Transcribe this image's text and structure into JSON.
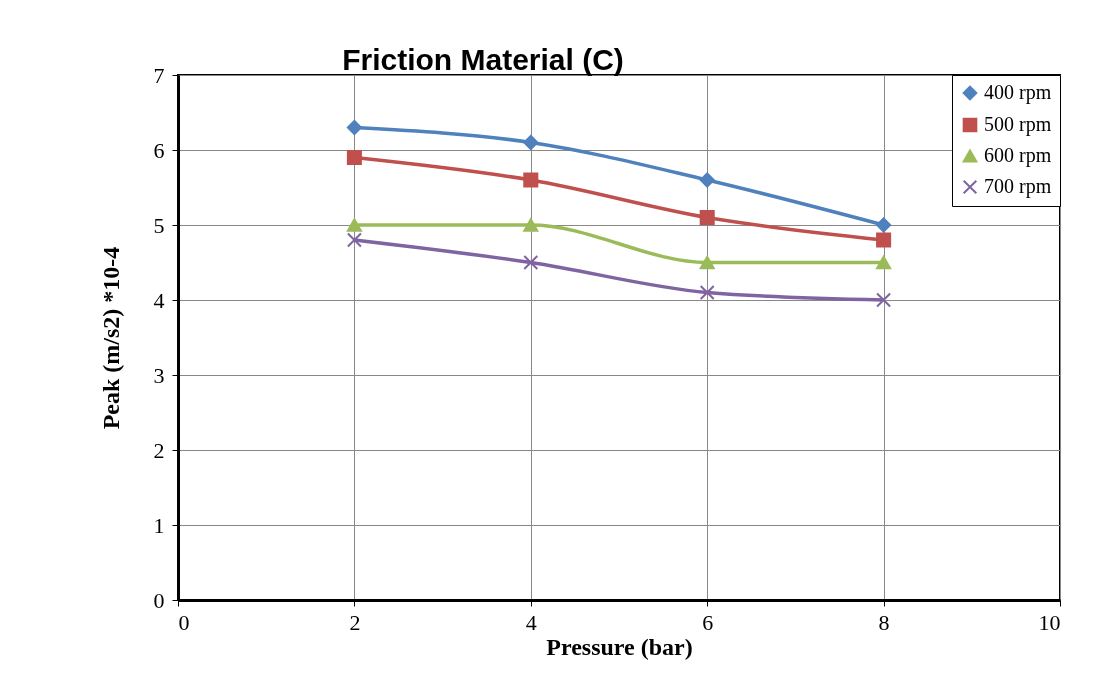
{
  "chart_data": {
    "type": "line",
    "title": "Friction Material (C)",
    "xlabel": "Pressure (bar)",
    "ylabel": "Peak (m/s2) *10-4",
    "x": [
      2,
      4,
      6,
      8
    ],
    "xlim": [
      0,
      10
    ],
    "xticks": [
      0,
      2,
      4,
      6,
      8,
      10
    ],
    "ylim": [
      0,
      7
    ],
    "yticks": [
      0,
      1,
      2,
      3,
      4,
      5,
      6,
      7
    ],
    "grid": true,
    "legend": "top right",
    "line_style": "solid",
    "series": [
      {
        "name": "400 rpm",
        "color": "#4f81bd",
        "marker": "diamond",
        "values": [
          6.3,
          6.1,
          5.6,
          5.0
        ]
      },
      {
        "name": "500 rpm",
        "color": "#c0504d",
        "marker": "square",
        "values": [
          5.9,
          5.6,
          5.1,
          4.8
        ]
      },
      {
        "name": "600 rpm",
        "color": "#9bbb59",
        "marker": "triangle",
        "values": [
          5.0,
          5.0,
          4.5,
          4.5
        ]
      },
      {
        "name": "700 rpm",
        "color": "#8064a2",
        "marker": "cross",
        "values": [
          4.8,
          4.5,
          4.1,
          4.0
        ]
      }
    ]
  }
}
